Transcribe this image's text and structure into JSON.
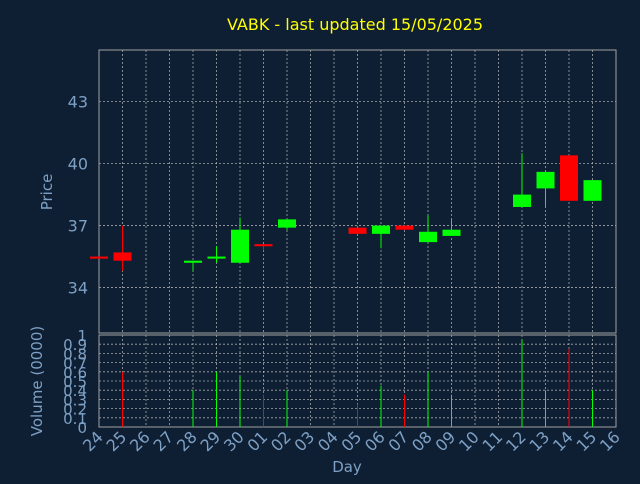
{
  "title": "VABK - last updated 15/05/2025",
  "colors": {
    "background": "#0f1f33",
    "title": "#ffff00",
    "axis_text": "#7da0c4",
    "frame": "#a0a0a0",
    "grid": "#c8c8c8",
    "up": "#00ff00",
    "down": "#ff0000"
  },
  "chart_data": [
    {
      "type": "candlestick",
      "ylabel": "Price",
      "ylim": [
        31.8,
        45.5
      ],
      "yticks": [
        34,
        37,
        40,
        43
      ],
      "grid": true,
      "candles": [
        {
          "day": "24",
          "open": 35.5,
          "close": 35.4,
          "high": 35.5,
          "low": 35.4
        },
        {
          "day": "25",
          "open": 35.7,
          "close": 35.3,
          "high": 37.0,
          "low": 34.8
        },
        {
          "day": "28",
          "open": 35.2,
          "close": 35.3,
          "high": 35.3,
          "low": 34.8
        },
        {
          "day": "29",
          "open": 35.4,
          "close": 35.5,
          "high": 36.0,
          "low": 35.2
        },
        {
          "day": "30",
          "open": 35.2,
          "close": 36.8,
          "high": 37.4,
          "low": 35.2
        },
        {
          "day": "01",
          "open": 36.1,
          "close": 36.0,
          "high": 36.1,
          "low": 35.8
        },
        {
          "day": "02",
          "open": 36.9,
          "close": 37.3,
          "high": 37.3,
          "low": 36.8
        },
        {
          "day": "05",
          "open": 36.9,
          "close": 36.6,
          "high": 36.9,
          "low": 36.6
        },
        {
          "day": "06",
          "open": 36.6,
          "close": 37.0,
          "high": 37.0,
          "low": 35.9
        },
        {
          "day": "07",
          "open": 37.0,
          "close": 36.8,
          "high": 37.0,
          "low": 36.8
        },
        {
          "day": "08",
          "open": 36.2,
          "close": 36.7,
          "high": 37.5,
          "low": 36.2
        },
        {
          "day": "09",
          "open": 36.5,
          "close": 36.8,
          "high": 37.3,
          "low": 36.5
        },
        {
          "day": "12",
          "open": 37.9,
          "close": 38.5,
          "high": 40.5,
          "low": 37.9
        },
        {
          "day": "13",
          "open": 38.8,
          "close": 39.6,
          "high": 39.6,
          "low": 37.9
        },
        {
          "day": "14",
          "open": 40.4,
          "close": 38.2,
          "high": 40.4,
          "low": 38.2
        },
        {
          "day": "15",
          "open": 38.2,
          "close": 39.2,
          "high": 39.2,
          "low": 38.2
        }
      ]
    },
    {
      "type": "bar",
      "ylabel": "Volume (0000)",
      "xlabel": "Day",
      "ylim": [
        0,
        1
      ],
      "yticks": [
        0,
        0.1,
        0.2,
        0.3,
        0.4,
        0.5,
        0.6,
        0.7,
        0.8,
        0.9,
        1
      ],
      "categories": [
        "24",
        "25",
        "26",
        "27",
        "28",
        "29",
        "30",
        "01",
        "02",
        "03",
        "04",
        "05",
        "06",
        "07",
        "08",
        "09",
        "10",
        "11",
        "12",
        "13",
        "14",
        "15",
        "16"
      ],
      "bars": [
        {
          "day": "25",
          "value": 0.6,
          "direction": "down"
        },
        {
          "day": "28",
          "value": 0.4,
          "direction": "up"
        },
        {
          "day": "29",
          "value": 0.6,
          "direction": "up"
        },
        {
          "day": "30",
          "value": 0.55,
          "direction": "up"
        },
        {
          "day": "01",
          "value": 0.35,
          "direction": "down"
        },
        {
          "day": "02",
          "value": 0.4,
          "direction": "up"
        },
        {
          "day": "05",
          "value": 0.25,
          "direction": "down"
        },
        {
          "day": "06",
          "value": 0.45,
          "direction": "up"
        },
        {
          "day": "07",
          "value": 0.35,
          "direction": "down"
        },
        {
          "day": "08",
          "value": 0.6,
          "direction": "up"
        },
        {
          "day": "09",
          "value": 0.35,
          "direction": "up"
        },
        {
          "day": "12",
          "value": 0.95,
          "direction": "up"
        },
        {
          "day": "13",
          "value": 0.4,
          "direction": "up"
        },
        {
          "day": "14",
          "value": 0.85,
          "direction": "down"
        },
        {
          "day": "15",
          "value": 0.4,
          "direction": "up"
        }
      ]
    }
  ]
}
